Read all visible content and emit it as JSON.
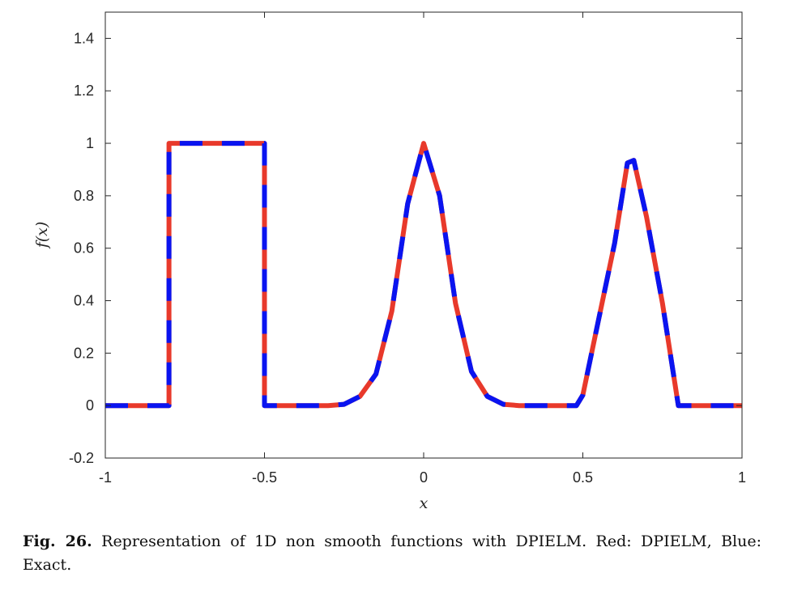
{
  "chart_data": {
    "type": "line",
    "xlabel": "x",
    "ylabel": "f(x)",
    "xlim": [
      -1,
      1
    ],
    "ylim": [
      -0.2,
      1.5
    ],
    "xticks": [
      -1,
      -0.5,
      0,
      0.5,
      1
    ],
    "xtick_labels": [
      "-1",
      "-0.5",
      "0",
      "0.5",
      "1"
    ],
    "yticks": [
      -0.2,
      0,
      0.2,
      0.4,
      0.6,
      0.8,
      1,
      1.2,
      1.4
    ],
    "ytick_labels": [
      "-0.2",
      "0",
      "0.2",
      "0.4",
      "0.6",
      "0.8",
      "1",
      "1.2",
      "1.4"
    ],
    "grid": false,
    "box": true,
    "colors": {
      "red": "#e8392b",
      "blue": "#0a14f0"
    },
    "series": [
      {
        "x": [
          -1,
          -0.8,
          -0.8,
          -0.5,
          -0.5,
          -0.3,
          -0.25,
          -0.2,
          -0.15,
          -0.1,
          -0.05,
          0,
          0.05,
          0.1,
          0.15,
          0.2,
          0.25,
          0.3,
          0.48,
          0.5,
          0.55,
          0.6,
          0.64,
          0.66,
          0.7,
          0.75,
          0.8,
          1
        ],
        "y": [
          0,
          0,
          1,
          1,
          0,
          0,
          0.005,
          0.035,
          0.12,
          0.36,
          0.77,
          1.0,
          0.8,
          0.39,
          0.13,
          0.035,
          0.005,
          0,
          0,
          0.04,
          0.33,
          0.62,
          0.925,
          0.935,
          0.72,
          0.39,
          0.0,
          0
        ]
      },
      {
        "x": [
          -1,
          -0.8,
          -0.8,
          -0.5,
          -0.5,
          -0.3,
          -0.25,
          -0.2,
          -0.15,
          -0.1,
          -0.05,
          0,
          0.05,
          0.1,
          0.15,
          0.2,
          0.25,
          0.3,
          0.48,
          0.5,
          0.55,
          0.6,
          0.64,
          0.66,
          0.7,
          0.75,
          0.8,
          1
        ],
        "y": [
          0,
          0,
          1,
          1,
          0,
          0,
          0.005,
          0.035,
          0.12,
          0.36,
          0.77,
          1.0,
          0.8,
          0.39,
          0.13,
          0.035,
          0.005,
          0,
          0,
          0.04,
          0.33,
          0.62,
          0.925,
          0.935,
          0.72,
          0.39,
          0.0,
          0
        ]
      }
    ]
  },
  "caption": {
    "fig_num": "Fig. 26.",
    "text": " Representation of 1D non smooth functions with DPIELM. Red: DPIELM, Blue: Exact."
  }
}
